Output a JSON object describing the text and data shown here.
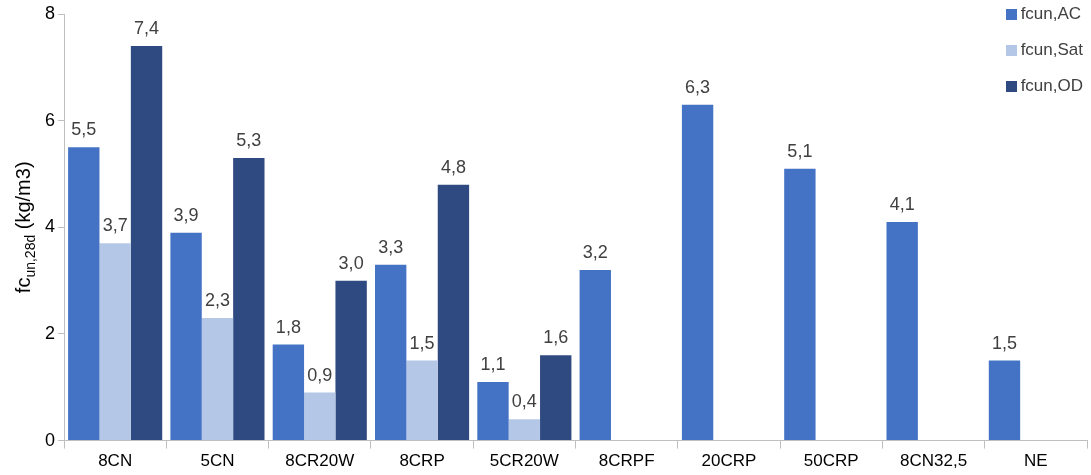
{
  "chart_data": {
    "type": "bar",
    "ylabel": "fc$_{un,28d}$ (kg/m3)",
    "categories": [
      "8CN",
      "5CN",
      "8CR20W",
      "8CRP",
      "5CR20W",
      "8CRPF",
      "20CRP",
      "50CRP",
      "8CN32,5",
      "NE"
    ],
    "series": [
      {
        "name": "fcun,AC",
        "color": "#4472c4",
        "values": [
          5.5,
          3.9,
          1.8,
          3.3,
          1.1,
          3.2,
          6.3,
          5.1,
          4.1,
          1.5
        ],
        "value_labels": [
          "5,5",
          "3,9",
          "1,8",
          "3,3",
          "1,1",
          "3,2",
          "6,3",
          "5,1",
          "4,1",
          "1,5"
        ]
      },
      {
        "name": "fcun,Sat",
        "color": "#b4c7e7",
        "values": [
          3.7,
          2.3,
          0.9,
          1.5,
          0.4,
          null,
          null,
          null,
          null,
          null
        ],
        "value_labels": [
          "3,7",
          "2,3",
          "0,9",
          "1,5",
          "0,4",
          null,
          null,
          null,
          null,
          null
        ]
      },
      {
        "name": "fcun,OD",
        "color": "#2f4a80",
        "values": [
          7.4,
          5.3,
          3.0,
          4.8,
          1.6,
          null,
          null,
          null,
          null,
          null
        ],
        "value_labels": [
          "7,4",
          "5,3",
          "3,0",
          "4,8",
          "1,6",
          null,
          null,
          null,
          null,
          null
        ]
      }
    ],
    "ylim": [
      0,
      8
    ],
    "yticks": [
      0,
      2,
      4,
      6,
      8
    ],
    "grid": false,
    "legend": "top right"
  }
}
